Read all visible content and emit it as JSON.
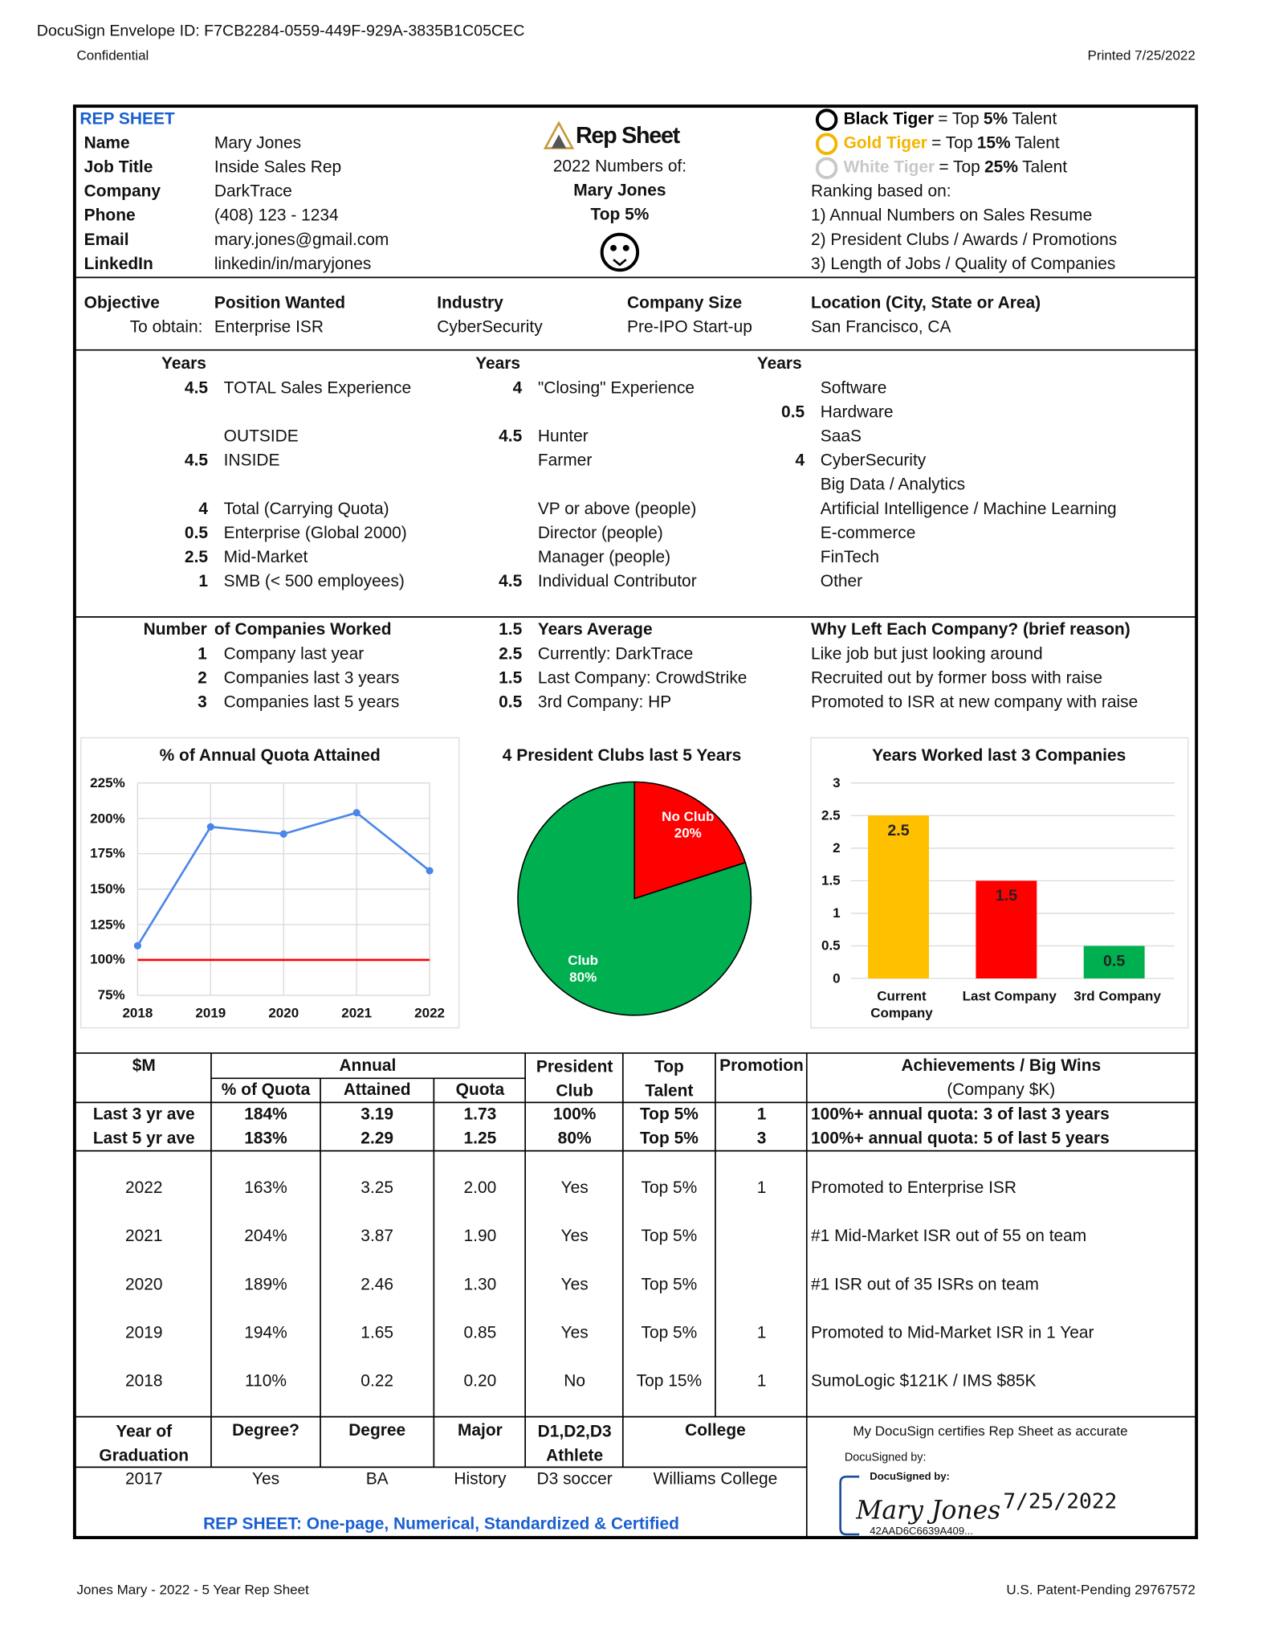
{
  "header": {
    "envelope": "DocuSign Envelope ID: F7CB2284-0559-449F-929A-3835B1C05CEC",
    "confidential": "Confidential",
    "printed": "Printed 7/25/2022"
  },
  "profile": {
    "title": "REP SHEET",
    "fields": [
      {
        "label": "Name",
        "value": "Mary Jones"
      },
      {
        "label": "Job Title",
        "value": "Inside Sales Rep"
      },
      {
        "label": "Company",
        "value": "DarkTrace"
      },
      {
        "label": "Phone",
        "value": "(408) 123 - 1234"
      },
      {
        "label": "Email",
        "value": "mary.jones@gmail.com"
      },
      {
        "label": "LinkedIn",
        "value": "linkedin/in/maryjones"
      }
    ]
  },
  "summary": {
    "logo": "Rep Sheet",
    "numbers_of": "2022 Numbers of:",
    "name": "Mary Jones",
    "rank": "Top 5%"
  },
  "tiers": [
    {
      "name": "Black Tiger",
      "prefix": "= Top",
      "level": "5%",
      "suffix": "Talent",
      "color": "#000000"
    },
    {
      "name": "Gold Tiger",
      "prefix": "= Top",
      "level": "15%",
      "suffix": "Talent",
      "color": "#f4b400"
    },
    {
      "name": "White Tiger",
      "prefix": "= Top",
      "level": "25%",
      "suffix": "Talent",
      "color": "#c8c8c8"
    }
  ],
  "ranking": {
    "title": "Ranking based on:",
    "items": [
      "1)  Annual Numbers on Sales Resume",
      "2)  President Clubs / Awards / Promotions",
      "3)  Length of Jobs / Quality of Companies"
    ]
  },
  "objective": {
    "columns": [
      {
        "header": "Objective",
        "value": "To obtain:"
      },
      {
        "header": "Position Wanted",
        "value": "Enterprise ISR"
      },
      {
        "header": "Industry",
        "value": "CyberSecurity"
      },
      {
        "header": "Company Size",
        "value": "Pre-IPO Start-up"
      },
      {
        "header": "Location (City, State or Area)",
        "value": "San Francisco, CA"
      }
    ]
  },
  "experience": {
    "columns": [
      {
        "header": "Years",
        "rows": [
          {
            "years": 4.5,
            "label": "TOTAL Sales Experience"
          },
          null,
          {
            "label": "OUTSIDE"
          },
          {
            "years": 4.5,
            "label": "INSIDE"
          },
          null,
          {
            "years": 4,
            "label": "Total (Carrying Quota)"
          },
          {
            "years": 0.5,
            "label": "Enterprise (Global 2000)"
          },
          {
            "years": 2.5,
            "label": "Mid-Market"
          },
          {
            "years": 1,
            "label": "SMB (< 500 employees)"
          }
        ]
      },
      {
        "header": "Years",
        "rows": [
          {
            "years": 4,
            "label": "\"Closing\" Experience"
          },
          null,
          {
            "years": 4.5,
            "label": "Hunter"
          },
          {
            "label": "Farmer"
          },
          null,
          {
            "label": "VP or above (people)"
          },
          {
            "label": "Director (people)"
          },
          {
            "label": "Manager (people)"
          },
          {
            "years": 4.5,
            "label": "Individual Contributor"
          }
        ]
      },
      {
        "header": "Years",
        "rows": [
          {
            "label": "Software"
          },
          {
            "years": 0.5,
            "label": "Hardware"
          },
          {
            "label": "SaaS"
          },
          {
            "years": 4,
            "label": "CyberSecurity"
          },
          {
            "label": "Big Data / Analytics"
          },
          {
            "label": "Artificial Intelligence / Machine Learning"
          },
          {
            "label": "E-commerce"
          },
          {
            "label": "FinTech"
          },
          {
            "label": "Other"
          }
        ]
      }
    ]
  },
  "companies": {
    "columns": [
      {
        "count_header": "Number",
        "header": "of Companies Worked",
        "rows": [
          {
            "value": 1,
            "label": "Company last year"
          },
          {
            "value": 2,
            "label": "Companies last 3 years"
          },
          {
            "value": 3,
            "label": "Companies last 5 years"
          }
        ]
      },
      {
        "count_header": 1.5,
        "header": "Years Average",
        "rows": [
          {
            "value": 2.5,
            "label": "Currently:  DarkTrace"
          },
          {
            "value": 1.5,
            "label": "Last Company:  CrowdStrike"
          },
          {
            "value": 0.5,
            "label": "3rd Company:  HP"
          }
        ]
      },
      {
        "header": "Why Left Each Company? (brief reason)",
        "rows": [
          {
            "label": "Like job but just looking around"
          },
          {
            "label": "Recruited out by former boss with raise"
          },
          {
            "label": "Promoted to ISR at new company with raise"
          }
        ]
      }
    ]
  },
  "chart_data": [
    {
      "type": "line",
      "title": "% of Annual Quota Attained",
      "x": [
        2018,
        2019,
        2020,
        2021,
        2022
      ],
      "values": [
        110,
        194,
        189,
        204,
        163
      ],
      "color": "#4a86e8",
      "xlim": [
        2018,
        2022
      ],
      "xticks": [
        2018,
        2019,
        2020,
        2021,
        2022
      ],
      "ylim": [
        75,
        225
      ],
      "yticks": [
        {
          "value": 75,
          "label": "75%"
        },
        {
          "value": 100,
          "label": "100%"
        },
        {
          "value": 125,
          "label": "125%"
        },
        {
          "value": 150,
          "label": "150%"
        },
        {
          "value": 175,
          "label": "175%"
        },
        {
          "value": 200,
          "label": "200%"
        },
        {
          "value": 225,
          "label": "225%"
        }
      ],
      "reference_line": {
        "value": 100,
        "color": "#ff0000"
      },
      "grid": true
    },
    {
      "type": "pie",
      "title": "4 President Clubs last 5 Years",
      "categories": [
        "No Club",
        "Club"
      ],
      "values": [
        20,
        80
      ],
      "value_labels": [
        "20%",
        "80%"
      ],
      "colors": [
        "#ff0000",
        "#00b050"
      ]
    },
    {
      "type": "bar",
      "title": "Years Worked last 3 Companies",
      "categories": [
        "Current Company",
        "Last Company",
        "3rd Company"
      ],
      "values": [
        2.5,
        1.5,
        0.5
      ],
      "colors": [
        "#ffc000",
        "#ff0000",
        "#00b050"
      ],
      "ylim": [
        0,
        3
      ],
      "yticks": [
        0,
        0.5,
        1,
        1.5,
        2,
        2.5,
        3
      ],
      "grid": true
    }
  ],
  "results": {
    "header": {
      "label_col": "$M",
      "group": "Annual",
      "subs": [
        "% of Quota",
        "Attained",
        "Quota"
      ],
      "others": [
        "President Club",
        "Top Talent",
        "Promotion"
      ],
      "achievements": "Achievements / Big Wins",
      "achievements_note": "(Company $K)"
    },
    "summary_rows": [
      [
        "Last 3 yr ave",
        "184%",
        "3.19",
        "1.73",
        "100%",
        "Top 5%",
        "1",
        "100%+ annual quota:  3 of last 3 years"
      ],
      [
        "Last 5 yr ave",
        "183%",
        "2.29",
        "1.25",
        "80%",
        "Top 5%",
        "3",
        "100%+ annual quota:  5 of last 5 years"
      ]
    ],
    "year_rows": [
      [
        "2022",
        "163%",
        "3.25",
        "2.00",
        "Yes",
        "Top 5%",
        "1",
        "Promoted to Enterprise ISR"
      ],
      [
        "2021",
        "204%",
        "3.87",
        "1.90",
        "Yes",
        "Top 5%",
        null,
        "#1 Mid-Market ISR out of 55 on team"
      ],
      [
        "2020",
        "189%",
        "2.46",
        "1.30",
        "Yes",
        "Top 5%",
        null,
        "#1 ISR out of 35 ISRs on team"
      ],
      [
        "2019",
        "194%",
        "1.65",
        "0.85",
        "Yes",
        "Top 5%",
        "1",
        "Promoted to Mid-Market ISR in 1 Year"
      ],
      [
        "2018",
        "110%",
        "0.22",
        "0.20",
        "No",
        "Top 15%",
        "1",
        "SumoLogic $121K / IMS $85K"
      ]
    ]
  },
  "education": {
    "headers": [
      "Year of Graduation",
      "Degree?",
      "Degree",
      "Major",
      "D1,D2,D3 Athlete",
      "College"
    ],
    "row": [
      "2017",
      "Yes",
      "BA",
      "History",
      "D3 soccer",
      "Williams College"
    ]
  },
  "tagline": "REP SHEET:  One-page, Numerical, Standardized & Certified",
  "signature": {
    "certifies": "My DocuSign certifies Rep Sheet as accurate",
    "docusigned": "DocuSigned by:",
    "box_label": "DocuSigned by:",
    "name": "Mary Jones",
    "date": "7/25/2022",
    "id": "42AAD6C6639A409..."
  },
  "footer": {
    "left": "Jones Mary - 2022 - 5 Year Rep Sheet",
    "right": "U.S. Patent-Pending 29767572"
  }
}
